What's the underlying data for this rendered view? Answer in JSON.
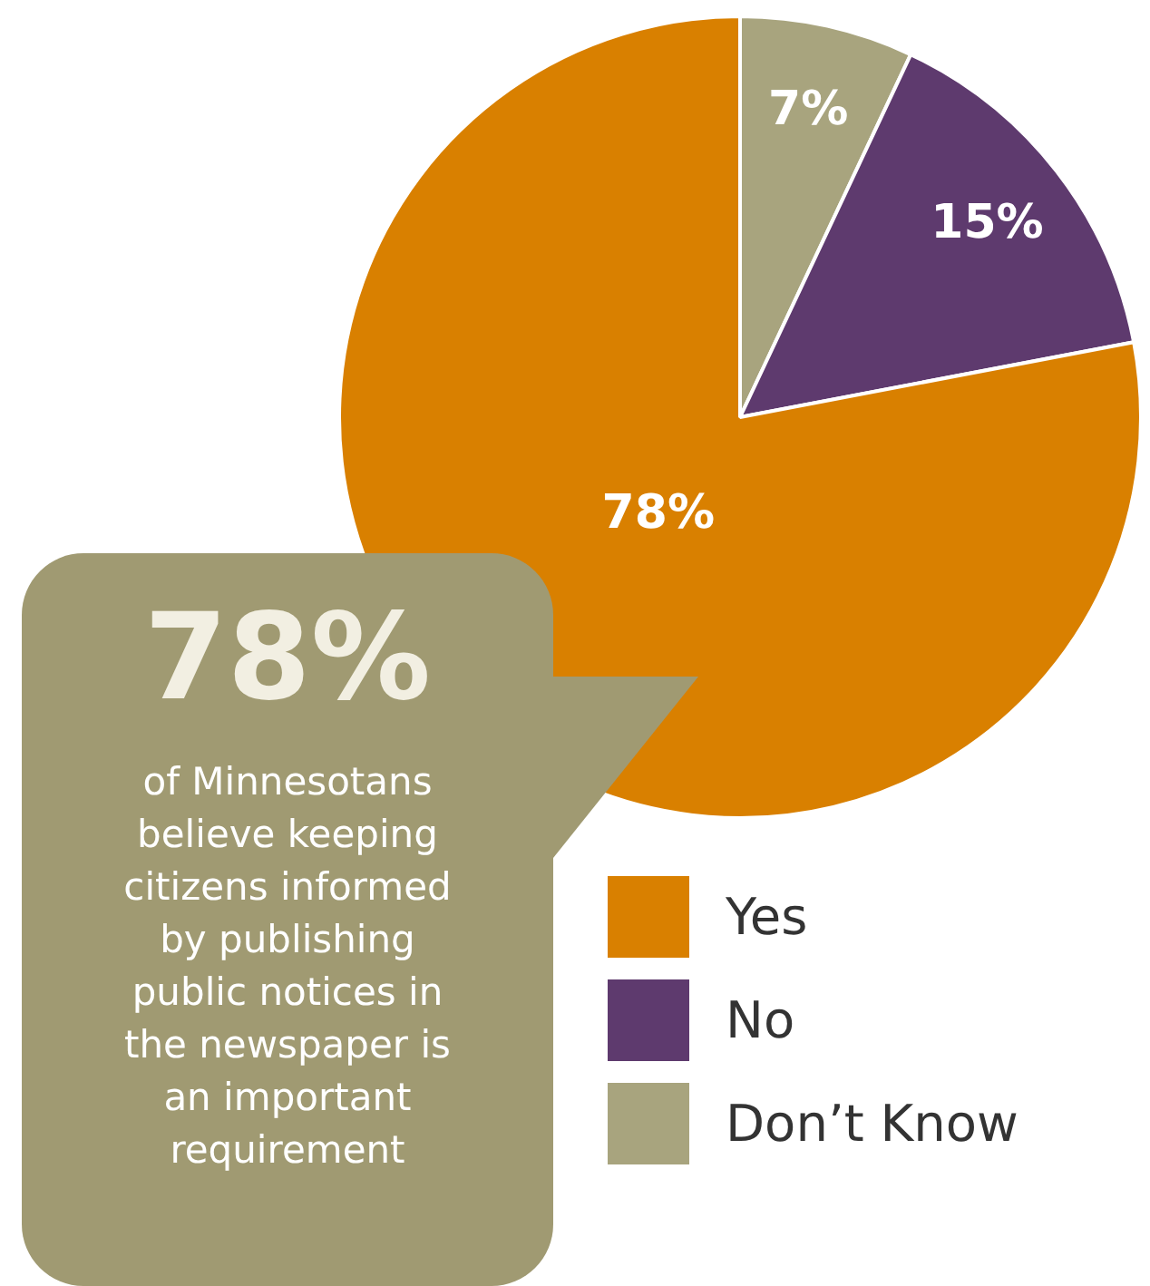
{
  "chart_data": {
    "type": "pie",
    "categories": [
      "Yes",
      "No",
      "Don’t Know"
    ],
    "values": [
      78,
      15,
      7
    ],
    "colors": [
      "#d98000",
      "#5e3a6e",
      "#a8a47e"
    ],
    "value_labels": [
      "78%",
      "15%",
      "7%"
    ],
    "legend": "bottom right",
    "annotations": [
      "78%",
      "of Minnesotans believe keeping citizens informed by publishing public notices in the newspaper is an important requirement"
    ]
  }
}
